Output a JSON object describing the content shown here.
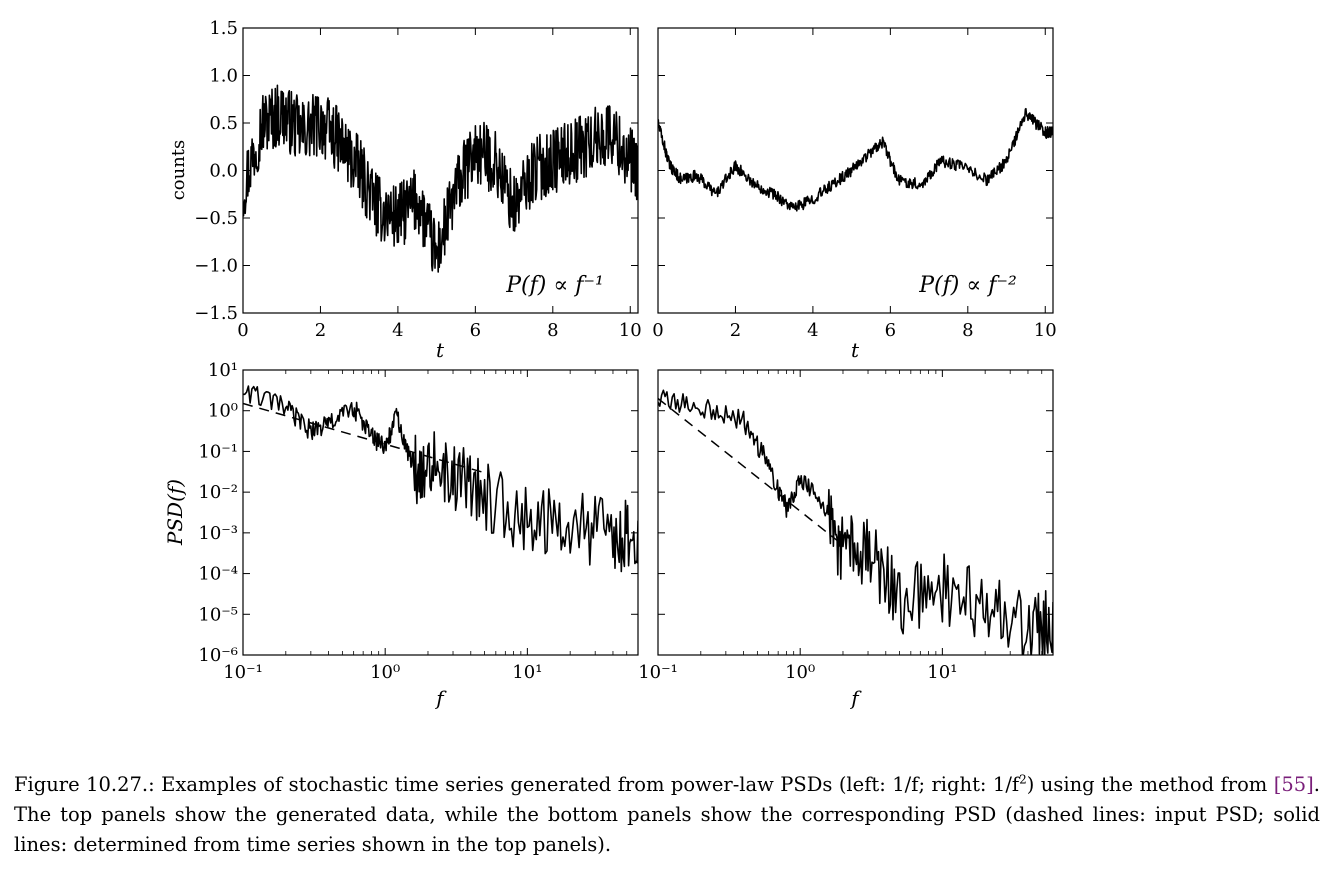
{
  "figure": {
    "caption_label": "Figure 10.27.:",
    "caption_before_sup": " Examples of stochastic time series generated from power-law PSDs (left: 1/f; right: 1/f",
    "caption_sup": "2",
    "caption_mid": ") using the method from ",
    "caption_ref": "[55]",
    "caption_after": ". The top panels show the generated data, while the bottom panels show the corresponding PSD (dashed lines: input PSD; solid lines: determined from time series shown in the top panels)."
  },
  "chart_data": [
    {
      "id": "ts-left",
      "type": "line",
      "xlabel": "t",
      "ylabel": "counts",
      "xlim": [
        0,
        10.2
      ],
      "ylim": [
        -1.5,
        1.5
      ],
      "xticks": [
        "0",
        "2",
        "4",
        "6",
        "8",
        "10"
      ],
      "yticks": [
        "1.5",
        "1.0",
        "0.5",
        "0.0",
        "−0.5",
        "−1.0",
        "−1.5"
      ],
      "annotation": "P(f) ∝ f⁻¹",
      "series": [
        {
          "style": "solid",
          "color": "#000000",
          "x": [
            0,
            0.5,
            1,
            1.5,
            2,
            2.5,
            3,
            3.5,
            4,
            4.5,
            5,
            5.5,
            6,
            6.5,
            7,
            7.5,
            8,
            8.5,
            9,
            9.5,
            10,
            10.2
          ],
          "y": [
            -0.2,
            0.5,
            0.6,
            0.4,
            0.5,
            0.3,
            0.0,
            -0.4,
            -0.5,
            -0.3,
            -0.9,
            -0.2,
            0.2,
            0.1,
            -0.4,
            0.0,
            0.1,
            0.2,
            0.3,
            0.4,
            0.1,
            0.0
          ]
        }
      ]
    },
    {
      "id": "ts-right",
      "type": "line",
      "xlabel": "t",
      "xlim": [
        0,
        10.2
      ],
      "ylim": [
        -1.5,
        1.5
      ],
      "xticks": [
        "0",
        "2",
        "4",
        "6",
        "8",
        "10"
      ],
      "annotation": "P(f) ∝ f⁻²",
      "series": [
        {
          "style": "solid",
          "color": "#000000",
          "x": [
            0,
            0.3,
            0.6,
            1,
            1.5,
            2,
            2.5,
            3,
            3.5,
            4,
            4.5,
            5,
            5.5,
            5.8,
            6.2,
            6.8,
            7.3,
            7.8,
            8.5,
            9,
            9.5,
            10,
            10.2
          ],
          "y": [
            0.5,
            0.05,
            -0.1,
            -0.05,
            -0.25,
            0.05,
            -0.15,
            -0.25,
            -0.4,
            -0.3,
            -0.15,
            0.0,
            0.2,
            0.3,
            -0.1,
            -0.15,
            0.1,
            0.05,
            -0.1,
            0.1,
            0.6,
            0.4,
            0.4
          ]
        }
      ]
    },
    {
      "id": "psd-left",
      "type": "line",
      "xlabel": "f",
      "ylabel": "PSD(f)",
      "xscale": "log",
      "yscale": "log",
      "xlim": [
        0.1,
        60
      ],
      "ylim": [
        1e-06,
        10
      ],
      "xticks": [
        "10⁻¹",
        "10⁰",
        "10¹"
      ],
      "yticks": [
        "10¹",
        "10⁰",
        "10⁻¹",
        "10⁻²",
        "10⁻³",
        "10⁻⁴",
        "10⁻⁵",
        "10⁻⁶"
      ],
      "series": [
        {
          "style": "dashed",
          "color": "#000000",
          "x": [
            0.1,
            5
          ],
          "y": [
            1.5,
            0.03
          ]
        },
        {
          "style": "solid",
          "color": "#000000",
          "x": [
            0.1,
            0.2,
            0.3,
            0.4,
            0.6,
            0.8,
            1.0,
            1.2,
            1.5,
            2,
            3,
            5,
            10,
            20,
            40,
            60
          ],
          "y": [
            4,
            1.5,
            0.4,
            0.6,
            1.5,
            0.3,
            0.15,
            1.0,
            0.07,
            0.15,
            0.05,
            0.02,
            0.005,
            0.003,
            0.002,
            0.002
          ]
        }
      ]
    },
    {
      "id": "psd-right",
      "type": "line",
      "xlabel": "f",
      "xscale": "log",
      "yscale": "log",
      "xlim": [
        0.1,
        60
      ],
      "ylim": [
        1e-06,
        10
      ],
      "xticks": [
        "10⁻¹",
        "10⁰",
        "10¹"
      ],
      "series": [
        {
          "style": "dashed",
          "color": "#000000",
          "x": [
            0.1,
            2
          ],
          "y": [
            2,
            0.0005
          ]
        },
        {
          "style": "solid",
          "color": "#000000",
          "x": [
            0.1,
            0.2,
            0.4,
            0.6,
            0.8,
            1.0,
            1.5,
            2,
            3,
            5,
            10,
            20,
            40,
            60
          ],
          "y": [
            2.5,
            1.5,
            0.7,
            0.06,
            0.005,
            0.03,
            0.005,
            0.001,
            0.0007,
            5e-05,
            0.0001,
            3e-05,
            1e-05,
            2e-05
          ]
        }
      ]
    }
  ]
}
